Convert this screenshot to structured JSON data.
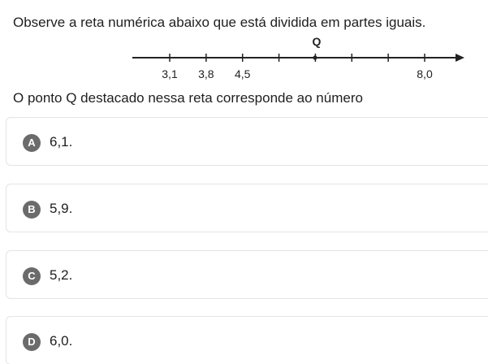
{
  "question": {
    "statement": "Observe a reta numérica abaixo que está dividida em partes iguais.",
    "prompt": "O ponto Q destacado nessa reta corresponde ao número"
  },
  "number_line": {
    "point_label": "Q",
    "tick_labels": [
      "3,1",
      "3,8",
      "4,5",
      "",
      "",
      "",
      "",
      "8,0"
    ],
    "tick_values": [
      3.1,
      3.8,
      4.5,
      5.2,
      5.9,
      6.6,
      7.3,
      8.0
    ],
    "point_value": 5.9
  },
  "options": [
    {
      "letter": "A",
      "text": "6,1."
    },
    {
      "letter": "B",
      "text": "5,9."
    },
    {
      "letter": "C",
      "text": "5,2."
    },
    {
      "letter": "D",
      "text": "6,0."
    }
  ]
}
